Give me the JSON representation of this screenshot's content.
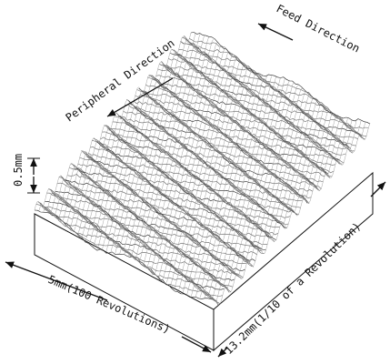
{
  "labels": {
    "feed_direction": "Feed Direction",
    "peripheral_direction": "Peripheral Direction",
    "height_scale": "0.5mm",
    "width": "5mm(100 Revolutions)",
    "length": "13.2mm(1/10 of a Revolution)"
  }
}
